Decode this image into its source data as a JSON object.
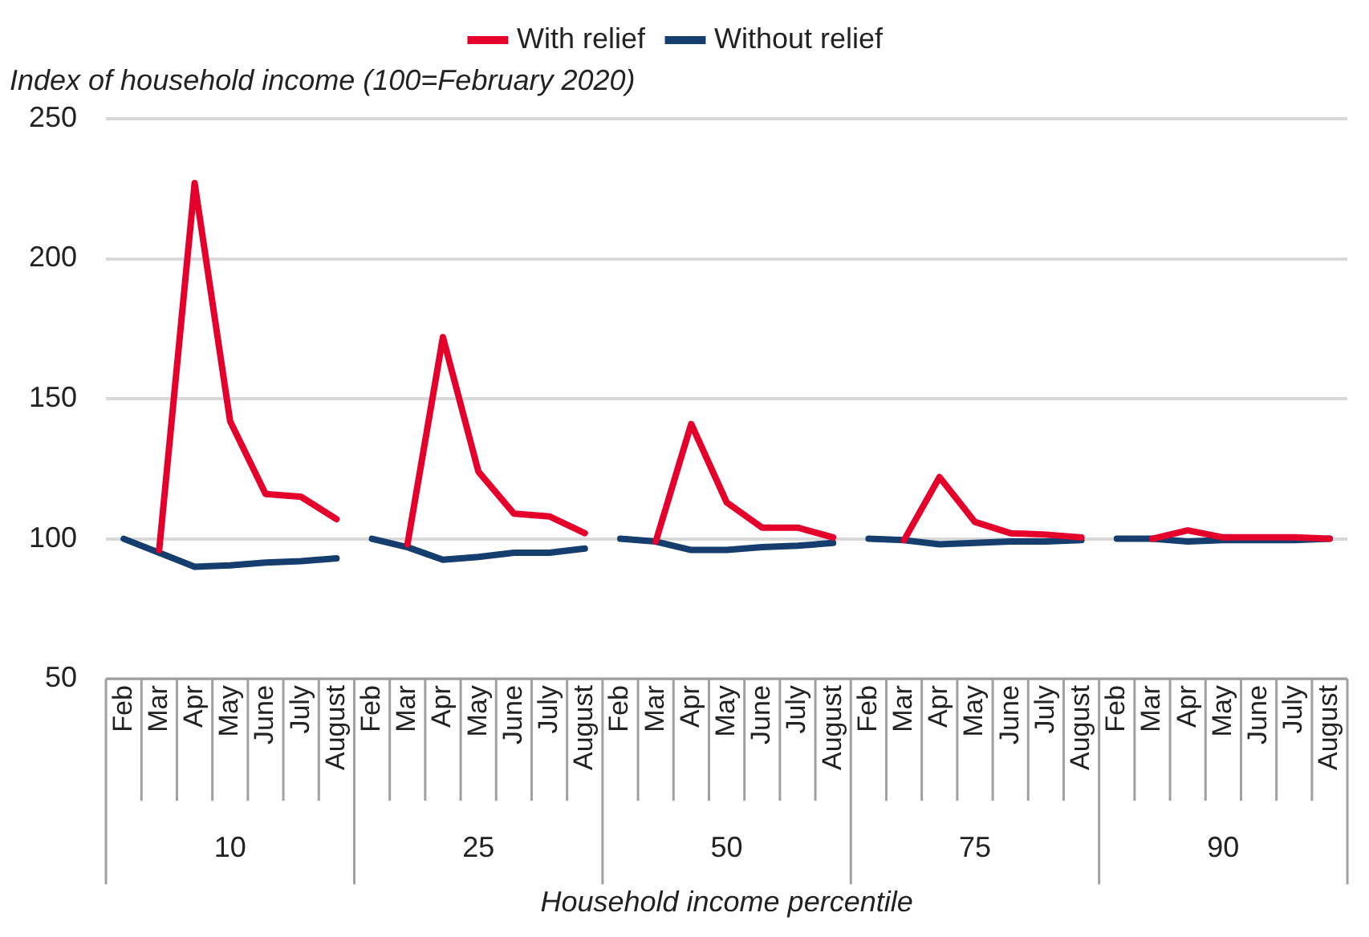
{
  "chart_data": {
    "type": "line",
    "ylabel": "Index of household income (100=February 2020)",
    "xlabel": "Household income percentile",
    "categories": [
      "Feb",
      "Mar",
      "Apr",
      "May",
      "June",
      "July",
      "August",
      "Feb",
      "Mar",
      "Apr",
      "May",
      "June",
      "July",
      "August",
      "Feb",
      "Mar",
      "Apr",
      "May",
      "June",
      "July",
      "August",
      "Feb",
      "Mar",
      "Apr",
      "May",
      "June",
      "July",
      "August",
      "Feb",
      "Mar",
      "Apr",
      "May",
      "June",
      "July",
      "August"
    ],
    "annotations": [
      "10",
      "25",
      "50",
      "75",
      "90"
    ],
    "series": [
      {
        "name": "With relief",
        "color": "#e4002b",
        "values": [
          null,
          96,
          227,
          142,
          116,
          115,
          107,
          null,
          98,
          172,
          124,
          109,
          108,
          102,
          null,
          99,
          141,
          113,
          104,
          104,
          100.5,
          null,
          99.5,
          122,
          106,
          102,
          101.5,
          100.5,
          null,
          100,
          103,
          100.5,
          100.5,
          100.5,
          100
        ]
      },
      {
        "name": "Without relief",
        "color": "#153d6e",
        "values": [
          100,
          95,
          90,
          90.5,
          91.5,
          92,
          93,
          100,
          97,
          92.5,
          93.5,
          95,
          95,
          96.5,
          100,
          99,
          96,
          96,
          97,
          97.5,
          98.5,
          100,
          99.5,
          98,
          98.5,
          99,
          99,
          99.5,
          100,
          100,
          99,
          99.5,
          99.5,
          99.5,
          100
        ]
      }
    ],
    "ylim": [
      50,
      250
    ],
    "yticks": [
      50,
      100,
      150,
      200,
      250
    ],
    "grid": "y",
    "legend": "top",
    "marker": "none",
    "line_style": "solid"
  }
}
